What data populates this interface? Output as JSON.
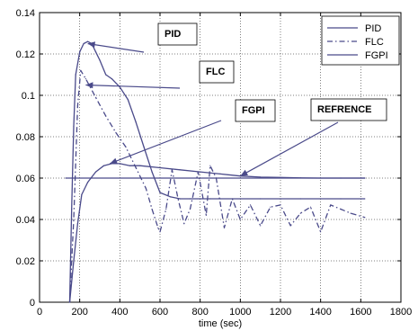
{
  "chart_data": {
    "type": "line",
    "xlabel": "time (sec)",
    "ylabel": "",
    "xlim": [
      0,
      1800
    ],
    "ylim": [
      0,
      0.14
    ],
    "x_ticks": [
      0,
      200,
      400,
      600,
      800,
      1000,
      1200,
      1400,
      1600,
      1800
    ],
    "y_ticks": [
      0,
      0.02,
      0.04,
      0.06,
      0.08,
      0.1,
      0.12,
      0.14
    ],
    "y_tick_labels": [
      "0",
      "0.02",
      "0.04",
      "0.06",
      "0.08",
      "0.1",
      "0.12",
      "0.14"
    ],
    "grid": true,
    "legend_position": "top-right",
    "series": [
      {
        "name": "PID",
        "style": "solid",
        "x": [
          150,
          160,
          170,
          180,
          200,
          220,
          240,
          260,
          280,
          300,
          330,
          360,
          400,
          440,
          480,
          520,
          560,
          600,
          650,
          700,
          750,
          800,
          850,
          900,
          1000,
          1100,
          1200,
          1300,
          1400,
          1500,
          1620
        ],
        "y": [
          0,
          0.045,
          0.085,
          0.11,
          0.121,
          0.125,
          0.126,
          0.125,
          0.121,
          0.117,
          0.11,
          0.108,
          0.104,
          0.098,
          0.087,
          0.075,
          0.063,
          0.053,
          0.051,
          0.05,
          0.05,
          0.05,
          0.05,
          0.05,
          0.05,
          0.05,
          0.05,
          0.05,
          0.05,
          0.05,
          0.05
        ]
      },
      {
        "name": "FLC",
        "style": "dash-dot",
        "x": [
          150,
          170,
          190,
          205,
          230,
          280,
          330,
          380,
          430,
          480,
          530,
          560,
          590,
          600,
          630,
          660,
          690,
          720,
          750,
          790,
          830,
          850,
          880,
          920,
          960,
          1000,
          1050,
          1100,
          1150,
          1200,
          1250,
          1300,
          1350,
          1400,
          1450,
          1500,
          1550,
          1620
        ],
        "y": [
          0,
          0.04,
          0.095,
          0.112,
          0.108,
          0.099,
          0.09,
          0.082,
          0.075,
          0.065,
          0.055,
          0.045,
          0.036,
          0.034,
          0.045,
          0.064,
          0.05,
          0.038,
          0.045,
          0.063,
          0.042,
          0.066,
          0.06,
          0.036,
          0.05,
          0.04,
          0.047,
          0.037,
          0.046,
          0.047,
          0.037,
          0.043,
          0.046,
          0.034,
          0.047,
          0.045,
          0.043,
          0.041
        ]
      },
      {
        "name": "FGPI",
        "style": "solid",
        "x": [
          150,
          170,
          190,
          210,
          240,
          280,
          320,
          360,
          400,
          450,
          500,
          600,
          700,
          800,
          900,
          1000,
          1100,
          1200,
          1300,
          1400,
          1500,
          1620
        ],
        "y": [
          0,
          0.02,
          0.038,
          0.052,
          0.058,
          0.063,
          0.066,
          0.067,
          0.067,
          0.066,
          0.066,
          0.065,
          0.064,
          0.063,
          0.062,
          0.061,
          0.0605,
          0.0603,
          0.0601,
          0.06,
          0.06,
          0.06
        ]
      },
      {
        "name": "REFRENCE",
        "style": "solid",
        "x": [
          130,
          1620
        ],
        "y": [
          0.06,
          0.06
        ]
      }
    ],
    "legend": [
      "PID",
      "FLC",
      "FGPI"
    ],
    "annotations": [
      {
        "text": "PID",
        "target_series": "PID",
        "target": [
          240,
          0.125
        ]
      },
      {
        "text": "FLC",
        "target_series": "FLC",
        "target": [
          230,
          0.105
        ]
      },
      {
        "text": "FGPI",
        "target_series": "FGPI",
        "target": [
          350,
          0.067
        ]
      },
      {
        "text": "REFRENCE",
        "target_series": "REFRENCE",
        "target": [
          1000,
          0.061
        ]
      }
    ]
  },
  "colors": {
    "background": "#ffffff",
    "line": "#4a4a8a",
    "grid": "#000000",
    "text": "#000000"
  }
}
